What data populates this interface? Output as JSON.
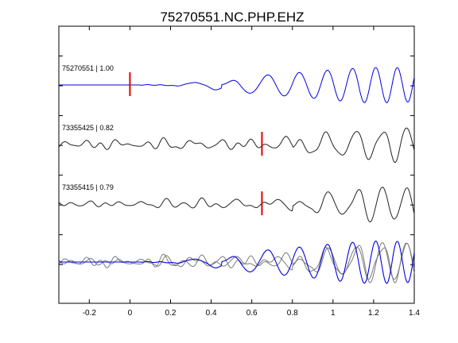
{
  "chart_data": {
    "type": "line",
    "title": "75270551.NC.PHP.EHZ",
    "xlabel": "",
    "ylabel": "",
    "xlim": [
      -0.35,
      1.4
    ],
    "x_ticks": [
      -0.2,
      0,
      0.2,
      0.4,
      0.6,
      0.8,
      1,
      1.2,
      1.4
    ],
    "x_tick_labels": [
      "-0.2",
      "0",
      "0.2",
      "0.4",
      "0.6",
      "0.8",
      "1",
      "1.2",
      "1.4"
    ],
    "grid": false,
    "pick_color": "#e00000",
    "series": [
      {
        "id": "75270551",
        "label": "75270551 | 1.00",
        "color": "#0000e6",
        "pick_time": 0.0,
        "pre_noise": 0.02,
        "wiggle_start": 0.05,
        "onset": 0.45,
        "freq_early": 4.6,
        "freq_late": 7.4,
        "amp_max": 1.0,
        "phase": 0.3,
        "seed": 3
      },
      {
        "id": "73355425",
        "label": "73355425 | 0.82",
        "color": "#222222",
        "pick_time": 0.65,
        "pre_noise": 0.28,
        "wiggle_start": -0.35,
        "onset": 0.8,
        "freq_early": 6.4,
        "freq_late": 7.4,
        "amp_max": 0.95,
        "phase": 0.55,
        "seed": 7
      },
      {
        "id": "73355415",
        "label": "73355415 | 0.79",
        "color": "#222222",
        "pick_time": 0.65,
        "pre_noise": 0.22,
        "wiggle_start": -0.35,
        "onset": 0.8,
        "freq_early": 5.8,
        "freq_late": 7.4,
        "amp_max": 0.95,
        "phase": 0.8,
        "seed": 11
      }
    ],
    "overlay": {
      "label": "",
      "gray_color": "#7a7a7a",
      "blue_color": "#0000e6"
    }
  }
}
